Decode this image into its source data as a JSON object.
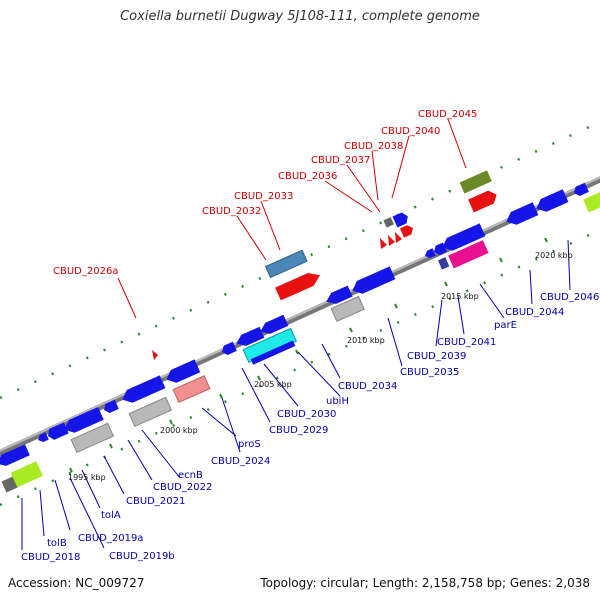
{
  "title": "Coxiella burnetii Dugway 5J108-111, complete genome",
  "footer": {
    "accession": "Accession: NC_009727",
    "topology": "Topology: circular; Length: 2,158,758 bp; Genes: 2,038"
  },
  "kbp_labels": [
    "1995 kbp",
    "2000 kbp",
    "2005 kbp",
    "2010 kbp",
    "2015 kbp",
    "2020 kbp"
  ],
  "labels_upper": [
    "CBUD_2026a",
    "CBUD_2032",
    "CBUD_2033",
    "CBUD_2036",
    "CBUD_2037",
    "CBUD_2038",
    "CBUD_2040",
    "CBUD_2045"
  ],
  "labels_lower": [
    "CBUD_2018",
    "tolB",
    "CBUD_2019a",
    "CBUD_2019b",
    "tolA",
    "CBUD_2021",
    "ecnB",
    "CBUD_2022",
    "proS",
    "CBUD_2024",
    "CBUD_2029",
    "CBUD_2030",
    "ubiH",
    "CBUD_2034",
    "CBUD_2035",
    "CBUD_2039",
    "CBUD_2041",
    "parE",
    "CBUD_2044",
    "CBUD_2046"
  ],
  "colors": {
    "forward_label": "#cc0000",
    "reverse_label": "#0000aa",
    "backbone": "#888888",
    "tick": "#228822"
  }
}
